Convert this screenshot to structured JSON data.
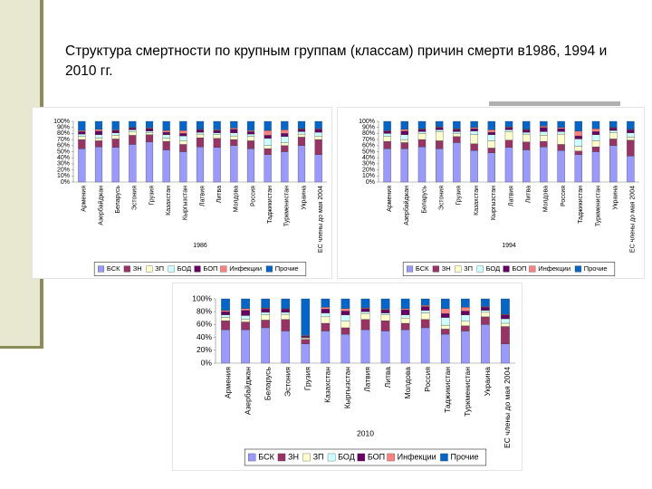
{
  "header": {
    "title": "Структура смертности по крупным группам (классам) причин смерти в1986, 1994 и 2010 гг."
  },
  "chart_data": [
    {
      "type": "bar",
      "stacked": true,
      "xlabel": "1986",
      "legend": "bottom",
      "categories": [
        "Армения",
        "Азербайджан",
        "Беларусь",
        "Эстония",
        "Грузия",
        "Казахстан",
        "Кыргызстан",
        "Латвия",
        "Литва",
        "Молдова",
        "Россия",
        "Таджикистан",
        "Туркменистан",
        "Украина",
        "ЕС члены до мая 2004"
      ],
      "ylim": [
        0,
        100
      ],
      "yticks": [
        {
          "value": 0,
          "label": "0%"
        },
        {
          "value": 10,
          "label": "10%"
        },
        {
          "value": 20,
          "label": "20%"
        },
        {
          "value": 30,
          "label": "30%"
        },
        {
          "value": 40,
          "label": "40%"
        },
        {
          "value": 50,
          "label": "50%"
        },
        {
          "value": 60,
          "label": "60%"
        },
        {
          "value": 70,
          "label": "70%"
        },
        {
          "value": 80,
          "label": "80%"
        },
        {
          "value": 90,
          "label": "90%"
        },
        {
          "value": 100,
          "label": "100%"
        }
      ],
      "series": [
        {
          "name": "БСК",
          "color": "#9999ff",
          "values": [
            55,
            58,
            57,
            62,
            66,
            53,
            50,
            58,
            57,
            60,
            55,
            45,
            50,
            60,
            45
          ]
        },
        {
          "name": "ЗН",
          "color": "#993366",
          "values": [
            15,
            10,
            14,
            15,
            12,
            14,
            12,
            15,
            15,
            10,
            13,
            10,
            10,
            14,
            25
          ]
        },
        {
          "name": "ЗП",
          "color": "#ffffcc",
          "values": [
            5,
            4,
            6,
            6,
            3,
            5,
            6,
            6,
            6,
            6,
            7,
            5,
            5,
            5,
            5
          ]
        },
        {
          "name": "БОД",
          "color": "#ccffff",
          "values": [
            4,
            6,
            4,
            3,
            3,
            6,
            8,
            3,
            3,
            5,
            4,
            12,
            10,
            4,
            7
          ]
        },
        {
          "name": "БОП",
          "color": "#660066",
          "values": [
            4,
            6,
            4,
            3,
            4,
            4,
            4,
            4,
            4,
            6,
            4,
            5,
            5,
            4,
            5
          ]
        },
        {
          "name": "Инфекции",
          "color": "#ff8080",
          "values": [
            2,
            3,
            1,
            1,
            1,
            3,
            5,
            1,
            1,
            2,
            2,
            8,
            6,
            1,
            1
          ]
        },
        {
          "name": "Прочие",
          "color": "#0066cc",
          "values": [
            15,
            13,
            14,
            10,
            11,
            15,
            15,
            13,
            14,
            11,
            15,
            15,
            14,
            12,
            12
          ]
        }
      ]
    },
    {
      "type": "bar",
      "stacked": true,
      "xlabel": "1994",
      "legend": "bottom",
      "categories": [
        "Армения",
        "Азербайджан",
        "Беларусь",
        "Эстония",
        "Грузия",
        "Казахстан",
        "Кыргызстан",
        "Латвия",
        "Литва",
        "Молдова",
        "Россия",
        "Таджикистан",
        "Туркменистан",
        "Украина",
        "ЕС члены до мая 2004"
      ],
      "ylim": [
        0,
        100
      ],
      "yticks": [
        {
          "value": 0,
          "label": "0%"
        },
        {
          "value": 10,
          "label": "10%"
        },
        {
          "value": 20,
          "label": "20%"
        },
        {
          "value": 30,
          "label": "30%"
        },
        {
          "value": 40,
          "label": "40%"
        },
        {
          "value": 50,
          "label": "50%"
        },
        {
          "value": 60,
          "label": "60%"
        },
        {
          "value": 70,
          "label": "70%"
        },
        {
          "value": 80,
          "label": "80%"
        },
        {
          "value": 90,
          "label": "90%"
        },
        {
          "value": 100,
          "label": "100%"
        }
      ],
      "series": [
        {
          "name": "БСК",
          "color": "#9999ff",
          "values": [
            55,
            55,
            58,
            55,
            65,
            52,
            48,
            57,
            53,
            58,
            52,
            45,
            50,
            60,
            43
          ]
        },
        {
          "name": "ЗН",
          "color": "#993366",
          "values": [
            12,
            10,
            12,
            13,
            10,
            11,
            8,
            12,
            13,
            9,
            10,
            6,
            8,
            11,
            26
          ]
        },
        {
          "name": "ЗП",
          "color": "#ffffcc",
          "values": [
            8,
            5,
            10,
            15,
            5,
            15,
            12,
            14,
            13,
            10,
            17,
            8,
            10,
            10,
            5
          ]
        },
        {
          "name": "БОД",
          "color": "#ccffff",
          "values": [
            5,
            8,
            3,
            3,
            3,
            6,
            10,
            3,
            3,
            6,
            4,
            12,
            10,
            4,
            7
          ]
        },
        {
          "name": "БОП",
          "color": "#660066",
          "values": [
            4,
            6,
            4,
            4,
            4,
            4,
            4,
            4,
            4,
            7,
            5,
            5,
            5,
            4,
            5
          ]
        },
        {
          "name": "Инфекции",
          "color": "#ff8080",
          "values": [
            1,
            3,
            1,
            1,
            1,
            2,
            4,
            1,
            1,
            2,
            2,
            8,
            5,
            1,
            1
          ]
        },
        {
          "name": "Прочие",
          "color": "#0066cc",
          "values": [
            15,
            13,
            12,
            9,
            12,
            10,
            14,
            9,
            13,
            8,
            10,
            16,
            12,
            10,
            13
          ]
        }
      ]
    },
    {
      "type": "bar",
      "stacked": true,
      "xlabel": "2010",
      "legend": "bottom",
      "categories": [
        "Армения",
        "Азербайджан",
        "Беларусь",
        "Эстония",
        "Грузия",
        "Казахстан",
        "Кыргызстан",
        "Латвия",
        "Литва",
        "Молдова",
        "Россия",
        "Таджикистан",
        "Туркменистан",
        "Украина",
        "ЕС члены до мая 2004"
      ],
      "ylim": [
        0,
        100
      ],
      "yticks": [
        {
          "value": 0,
          "label": "0%"
        },
        {
          "value": 20,
          "label": "20%"
        },
        {
          "value": 40,
          "label": "40%"
        },
        {
          "value": 60,
          "label": "60%"
        },
        {
          "value": 80,
          "label": "80%"
        },
        {
          "value": 100,
          "label": "100%"
        }
      ],
      "series": [
        {
          "name": "БСК",
          "color": "#9999ff",
          "values": [
            52,
            52,
            55,
            50,
            30,
            50,
            45,
            52,
            50,
            52,
            55,
            45,
            50,
            60,
            30
          ]
        },
        {
          "name": "ЗН",
          "color": "#993366",
          "values": [
            14,
            12,
            12,
            18,
            7,
            12,
            10,
            16,
            16,
            10,
            13,
            8,
            8,
            12,
            27
          ]
        },
        {
          "name": "ЗП",
          "color": "#ffffcc",
          "values": [
            5,
            4,
            8,
            8,
            2,
            10,
            10,
            9,
            9,
            8,
            10,
            6,
            7,
            7,
            5
          ]
        },
        {
          "name": "БОД",
          "color": "#ccffff",
          "values": [
            4,
            6,
            4,
            3,
            1,
            6,
            10,
            3,
            3,
            5,
            4,
            12,
            10,
            3,
            7
          ]
        },
        {
          "name": "БОП",
          "color": "#660066",
          "values": [
            5,
            8,
            6,
            5,
            2,
            6,
            6,
            5,
            5,
            8,
            6,
            6,
            6,
            5,
            6
          ]
        },
        {
          "name": "Инфекции",
          "color": "#ff8080",
          "values": [
            2,
            3,
            1,
            1,
            1,
            3,
            4,
            1,
            1,
            2,
            2,
            8,
            6,
            1,
            1
          ]
        },
        {
          "name": "Прочие",
          "color": "#0066cc",
          "values": [
            18,
            15,
            14,
            15,
            57,
            13,
            15,
            14,
            16,
            15,
            10,
            15,
            13,
            12,
            24
          ]
        }
      ]
    }
  ]
}
